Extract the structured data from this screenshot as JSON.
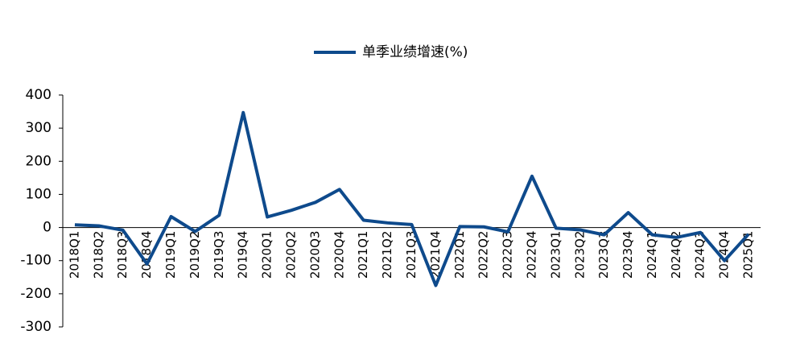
{
  "chart_data": {
    "type": "line",
    "categories": [
      "2018Q1",
      "2018Q2",
      "2018Q3",
      "2018Q4",
      "2019Q1",
      "2019Q2",
      "2019Q3",
      "2019Q4",
      "2020Q1",
      "2020Q2",
      "2020Q3",
      "2020Q4",
      "2021Q1",
      "2021Q2",
      "2021Q3",
      "2021Q4",
      "2022Q1",
      "2022Q2",
      "2022Q3",
      "2022Q4",
      "2023Q1",
      "2023Q2",
      "2023Q3",
      "2023Q4",
      "2024Q1",
      "2024Q2",
      "2024Q3",
      "2024Q4",
      "2025Q1"
    ],
    "series": [
      {
        "name": "单季业绩增速(%)",
        "color": "#0e4a8c",
        "values": [
          8,
          5,
          -8,
          -110,
          33,
          -12,
          37,
          347,
          32,
          52,
          76,
          115,
          22,
          14,
          9,
          -175,
          3,
          2,
          -13,
          155,
          -2,
          -7,
          -22,
          45,
          -22,
          -30,
          -15,
          -100,
          -20
        ]
      }
    ],
    "ylim": [
      -300,
      400
    ],
    "yticks": [
      -300,
      -200,
      -100,
      0,
      100,
      200,
      300,
      400
    ],
    "grid": false,
    "legend": "top"
  }
}
